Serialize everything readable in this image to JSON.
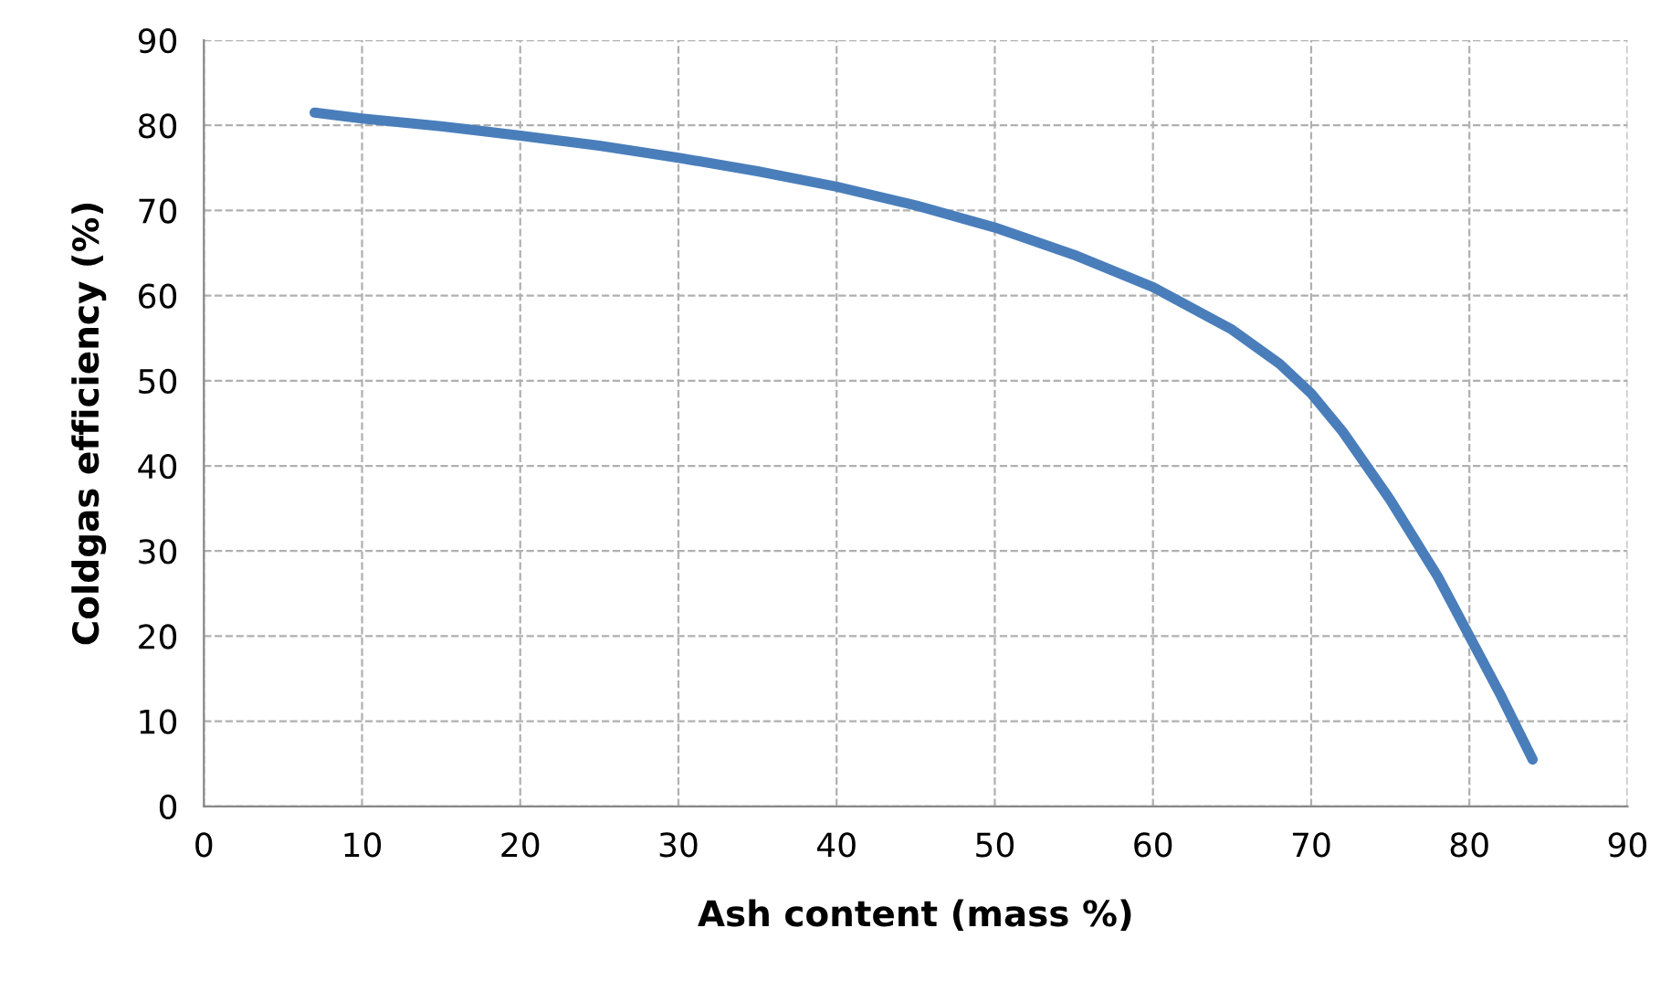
{
  "chart_data": {
    "type": "line",
    "xlabel": "Ash content (mass %)",
    "ylabel": "Coldgas efficiency (%)",
    "x": [
      7,
      10,
      15,
      20,
      25,
      30,
      35,
      40,
      45,
      50,
      55,
      60,
      65,
      68,
      70,
      72,
      75,
      78,
      80,
      82,
      84
    ],
    "series": [
      {
        "color": "#4a7ebb",
        "values": [
          81.5,
          80.8,
          79.9,
          78.8,
          77.6,
          76.2,
          74.6,
          72.8,
          70.6,
          68,
          64.8,
          61,
          56,
          52,
          48.5,
          44,
          36,
          27,
          20,
          13,
          5.5
        ]
      }
    ],
    "xlim": [
      0,
      90
    ],
    "xticks": [
      0,
      10,
      20,
      30,
      40,
      50,
      60,
      70,
      80,
      90
    ],
    "ylim": [
      0,
      90
    ],
    "yticks": [
      0,
      10,
      20,
      30,
      40,
      50,
      60,
      70,
      80,
      90
    ],
    "grid": true,
    "marker": "none",
    "line_style": "solid"
  }
}
